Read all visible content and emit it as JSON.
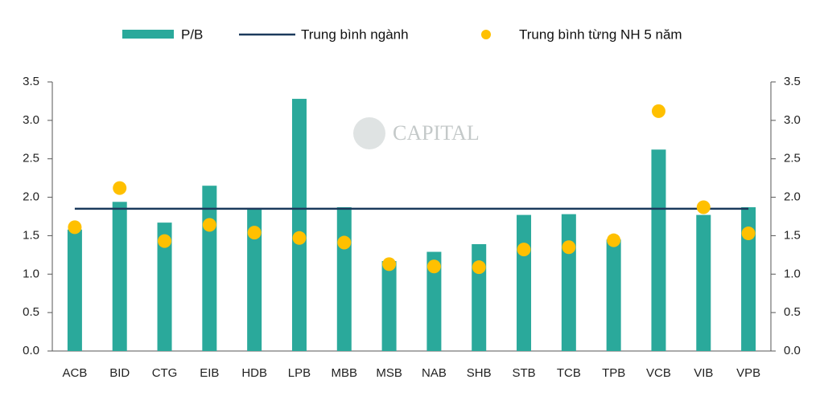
{
  "chart_data": {
    "type": "bar",
    "watermark": "CAPITAL",
    "categories": [
      "ACB",
      "BID",
      "CTG",
      "EIB",
      "HDB",
      "LPB",
      "MBB",
      "MSB",
      "NAB",
      "SHB",
      "STB",
      "TCB",
      "TPB",
      "VCB",
      "VIB",
      "VPB"
    ],
    "series": [
      {
        "name": "P/B",
        "type": "bar",
        "color": "#2aa99b",
        "values": [
          1.58,
          1.94,
          1.67,
          2.15,
          1.86,
          3.28,
          1.87,
          1.17,
          1.29,
          1.39,
          1.77,
          1.78,
          1.45,
          2.62,
          1.77,
          1.87
        ]
      },
      {
        "name": "Trung bình ngành",
        "type": "line",
        "color": "#1b3a5c",
        "values": [
          1.85,
          1.85,
          1.85,
          1.85,
          1.85,
          1.85,
          1.85,
          1.85,
          1.85,
          1.85,
          1.85,
          1.85,
          1.85,
          1.85,
          1.85,
          1.85
        ]
      },
      {
        "name": "Trung bình từng NH 5 năm",
        "type": "scatter",
        "color": "#ffc000",
        "values": [
          1.61,
          2.12,
          1.43,
          1.64,
          1.54,
          1.47,
          1.41,
          1.13,
          1.1,
          1.09,
          1.32,
          1.35,
          1.44,
          3.12,
          1.87,
          1.53
        ]
      }
    ],
    "ylim": [
      0,
      3.5
    ],
    "yticks": [
      {
        "value": 0,
        "label": "0.0"
      },
      0.5,
      {
        "value": 1,
        "label": "1.0"
      },
      1.5,
      {
        "value": 2,
        "label": "2.0"
      },
      2.5,
      {
        "value": 3,
        "label": "3.0"
      },
      3.5
    ],
    "y2lim": [
      0,
      3.5
    ],
    "y2ticks": [
      {
        "value": 0,
        "label": "0.0"
      },
      0.5,
      {
        "value": 1,
        "label": "1.0"
      },
      1.5,
      {
        "value": 2,
        "label": "2.0"
      },
      2.5,
      {
        "value": 3,
        "label": "3.0"
      },
      3.5
    ],
    "grid": false,
    "legend": "top"
  }
}
